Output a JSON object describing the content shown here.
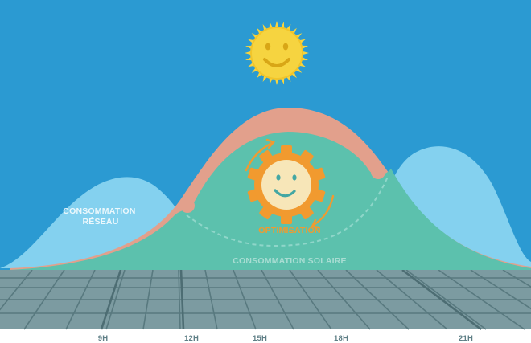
{
  "labels": {
    "grid_consumption_line1": "CONSOMMATION",
    "grid_consumption_line2": "RÉSEAU",
    "optimisation": "OPTIMISATION",
    "solar_consumption": "CONSOMMATION SOLAIRE"
  },
  "time_axis": {
    "ticks": [
      "9H",
      "12H",
      "15H",
      "18H",
      "21H"
    ]
  },
  "colors": {
    "sky": "#2b9ad2",
    "grid_demand_curve": "#84d1ef",
    "solar_production_arc": "#e2a08c",
    "solar_consumption_area": "#5cc1ad",
    "optimisation": "#f19a2f",
    "sun": "#f6d440",
    "ground": "#7a9aa0",
    "ground_lines": "#56787e"
  },
  "icons": {
    "sun": "smiling-sun-icon",
    "optimisation": "smiling-gear-icon"
  }
}
